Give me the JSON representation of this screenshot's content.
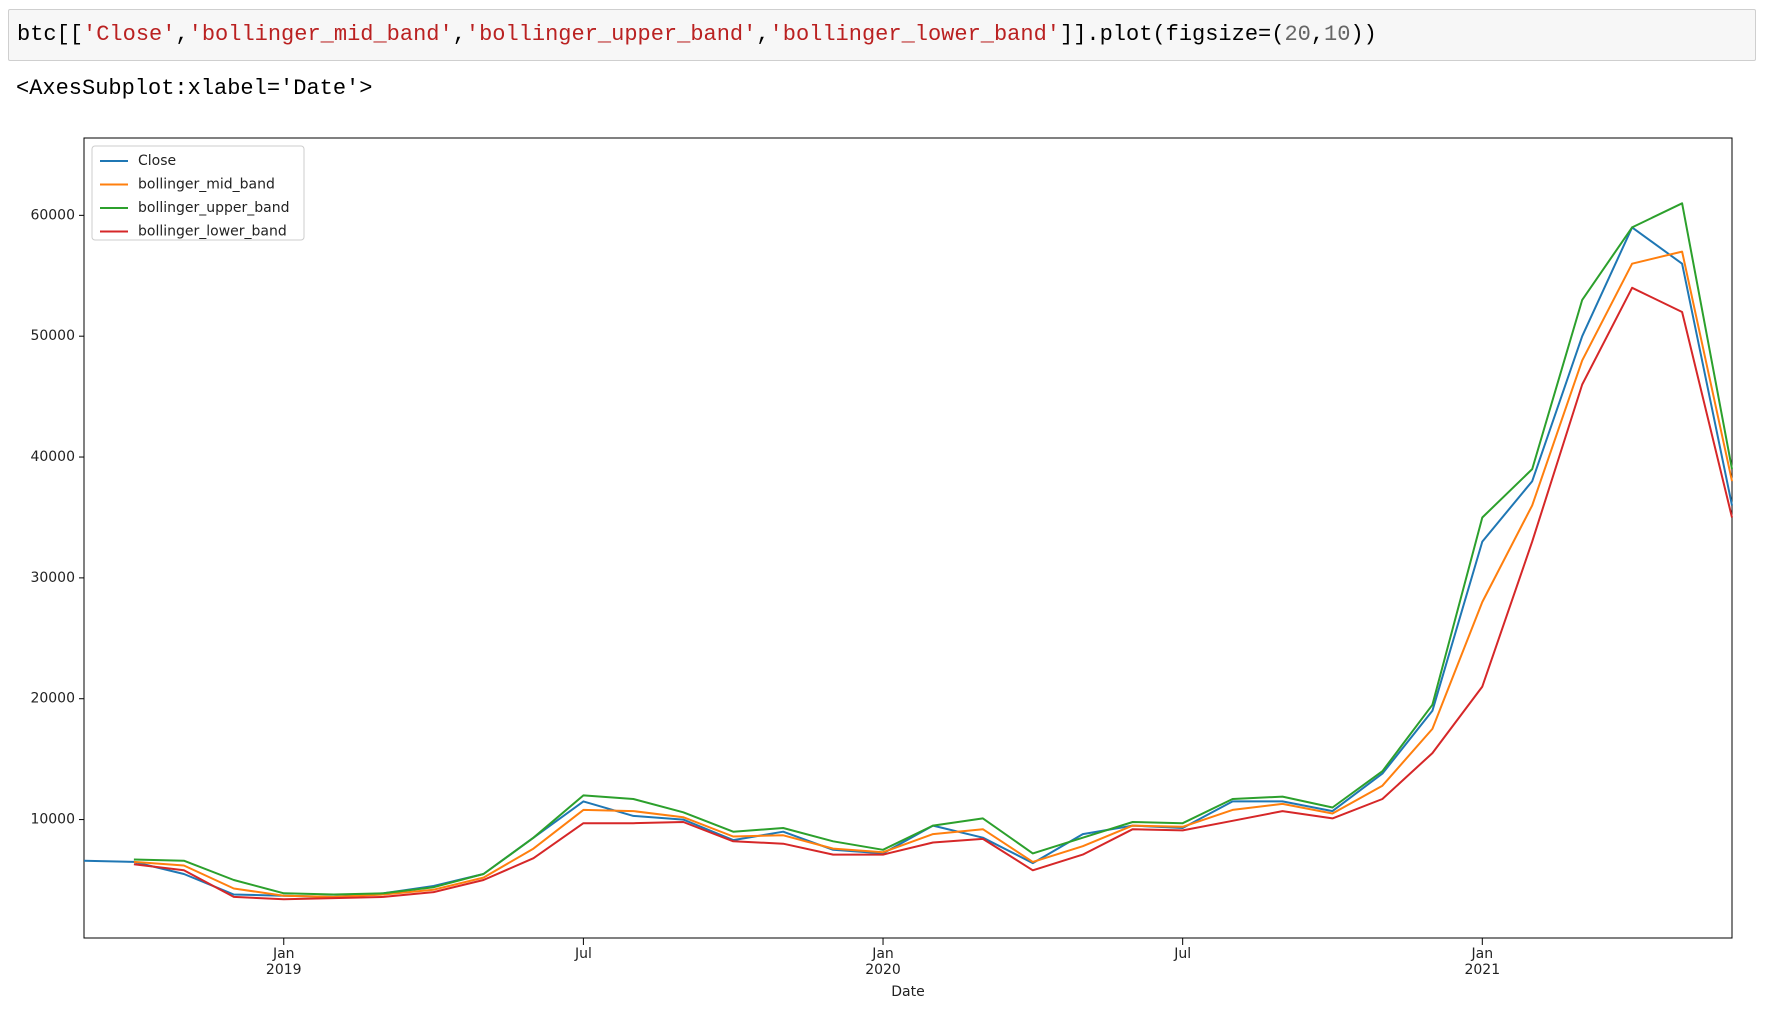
{
  "cell": {
    "code": [
      {
        "text": "btc[[",
        "kind": "plain"
      },
      {
        "text": "'Close'",
        "kind": "string"
      },
      {
        "text": ",",
        "kind": "plain"
      },
      {
        "text": "'bollinger_mid_band'",
        "kind": "string"
      },
      {
        "text": ",",
        "kind": "plain"
      },
      {
        "text": "'bollinger_upper_band'",
        "kind": "string"
      },
      {
        "text": ",",
        "kind": "plain"
      },
      {
        "text": "'bollinger_lower_band'",
        "kind": "string"
      },
      {
        "text": "]].plot(figsize=(",
        "kind": "plain"
      },
      {
        "text": "20",
        "kind": "number"
      },
      {
        "text": ",",
        "kind": "plain"
      },
      {
        "text": "10",
        "kind": "number"
      },
      {
        "text": "))",
        "kind": "plain"
      }
    ],
    "output": "<AxesSubplot:xlabel='Date'>"
  },
  "chart_data": {
    "type": "line",
    "xlabel": "Date",
    "x": [
      "2018-09",
      "2018-10",
      "2018-11",
      "2018-12",
      "2019-01",
      "2019-02",
      "2019-03",
      "2019-04",
      "2019-05",
      "2019-06",
      "2019-07",
      "2019-08",
      "2019-09",
      "2019-10",
      "2019-11",
      "2019-12",
      "2020-01",
      "2020-02",
      "2020-03",
      "2020-04",
      "2020-05",
      "2020-06",
      "2020-07",
      "2020-08",
      "2020-09",
      "2020-10",
      "2020-11",
      "2020-12",
      "2021-01",
      "2021-02",
      "2021-03",
      "2021-04",
      "2021-05",
      "2021-06"
    ],
    "xlim": [
      "2018-09",
      "2021-06"
    ],
    "xticks": [
      {
        "value": "2019-01",
        "label": "Jan",
        "year": "2019"
      },
      {
        "value": "2019-07",
        "label": "Jul"
      },
      {
        "value": "2020-01",
        "label": "Jan",
        "year": "2020"
      },
      {
        "value": "2020-07",
        "label": "Jul"
      },
      {
        "value": "2021-01",
        "label": "Jan",
        "year": "2021"
      }
    ],
    "ylim": [
      200,
      66400
    ],
    "yticks": [
      10000,
      20000,
      30000,
      40000,
      50000,
      60000
    ],
    "legend": "upper left",
    "series": [
      {
        "name": "Close",
        "color": "#1f77b4",
        "values": [
          6600,
          6500,
          5500,
          3800,
          3700,
          3600,
          3900,
          4500,
          5500,
          8500,
          11500,
          10300,
          10000,
          8300,
          9000,
          7500,
          7200,
          9500,
          8500,
          6400,
          8800,
          9500,
          9300,
          11500,
          11500,
          10700,
          13800,
          19000,
          33000,
          38000,
          50000,
          59000,
          56000,
          36000
        ]
      },
      {
        "name": "bollinger_mid_band",
        "color": "#ff7f0e",
        "values": [
          null,
          6500,
          6200,
          4300,
          3700,
          3600,
          3800,
          4200,
          5200,
          7600,
          10800,
          10700,
          10200,
          8600,
          8700,
          7600,
          7300,
          8800,
          9200,
          6500,
          7800,
          9500,
          9400,
          10800,
          11300,
          10500,
          12800,
          17500,
          28000,
          36000,
          48000,
          56000,
          57000,
          38000
        ]
      },
      {
        "name": "bollinger_upper_band",
        "color": "#2ca02c",
        "values": [
          null,
          6700,
          6600,
          5000,
          3900,
          3800,
          3900,
          4400,
          5500,
          8500,
          12000,
          11700,
          10600,
          9000,
          9300,
          8200,
          7500,
          9500,
          10100,
          7200,
          8500,
          9800,
          9700,
          11700,
          11900,
          11000,
          14000,
          19500,
          35000,
          39000,
          53000,
          59000,
          61000,
          39000
        ]
      },
      {
        "name": "bollinger_lower_band",
        "color": "#d62728",
        "values": [
          null,
          6300,
          5800,
          3600,
          3400,
          3500,
          3600,
          4000,
          5000,
          6800,
          9700,
          9700,
          9800,
          8200,
          8000,
          7100,
          7100,
          8100,
          8400,
          5800,
          7100,
          9200,
          9100,
          9900,
          10700,
          10100,
          11700,
          15500,
          21000,
          33000,
          46000,
          54000,
          52000,
          35000
        ]
      }
    ]
  }
}
